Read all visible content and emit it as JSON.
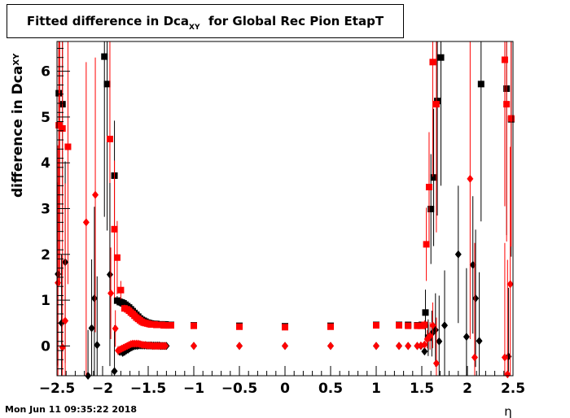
{
  "title": {
    "main": "Fitted difference in Dca",
    "sub": "XY",
    "rest": "  for Global Rec Pion EtapT"
  },
  "timestamp": "Mon Jun 11 09:35:22 2018",
  "colors": {
    "black_series": "#000000",
    "red_series": "#ff0000",
    "frame": "#000000"
  },
  "chart_data": {
    "type": "scatter",
    "title": "Fitted difference in Dca_XY for Global Rec Pion EtapT",
    "xlabel": "η",
    "ylabel": "difference in Dca",
    "ylabel_sub": "XY",
    "xlim": [
      -2.5,
      2.5
    ],
    "ylim": [
      -0.65,
      6.65
    ],
    "xticks": [
      -2.5,
      -2,
      -1.5,
      -1,
      -0.5,
      0,
      0.5,
      1,
      1.5,
      2,
      2.5
    ],
    "xtick_labels": [
      "−2.5",
      "−2",
      "−1.5",
      "−1",
      "−0.5",
      "0",
      "0.5",
      "1",
      "1.5",
      "2",
      "2.5"
    ],
    "yticks": [
      0,
      1,
      2,
      3,
      4,
      5,
      6
    ],
    "ytick_labels": [
      "0",
      "1",
      "2",
      "3",
      "4",
      "5",
      "6"
    ],
    "grid": false,
    "series": [
      {
        "marker": "square",
        "color": "#000000",
        "x": [
          -2.48,
          -2.44,
          -1.98,
          -1.95,
          -1.87,
          -1.84,
          -1.81,
          -1.79,
          -1.77,
          -1.75,
          -1.73,
          -1.71,
          -1.69,
          -1.67,
          -1.65,
          -1.63,
          -1.61,
          -1.59,
          -1.57,
          -1.55,
          -1.53,
          -1.51,
          -1.49,
          -1.47,
          -1.45,
          -1.43,
          -1.41,
          -1.39,
          -1.37,
          -1.35,
          -1.33,
          -1.31,
          -1.29,
          -1.27,
          -1.25,
          -1.0,
          -0.5,
          0.0,
          0.5,
          1.0,
          1.25,
          1.35,
          1.45,
          1.5,
          1.54,
          1.57,
          1.6,
          1.63,
          1.67,
          1.71,
          2.15,
          2.43,
          2.48
        ],
        "y": [
          5.52,
          5.28,
          6.32,
          5.72,
          3.72,
          0.99,
          0.96,
          0.95,
          0.93,
          0.9,
          0.87,
          0.84,
          0.8,
          0.76,
          0.72,
          0.68,
          0.64,
          0.6,
          0.57,
          0.55,
          0.53,
          0.51,
          0.5,
          0.49,
          0.48,
          0.48,
          0.48,
          0.47,
          0.47,
          0.47,
          0.47,
          0.47,
          0.46,
          0.46,
          0.46,
          0.45,
          0.44,
          0.43,
          0.44,
          0.46,
          0.46,
          0.46,
          0.45,
          0.46,
          0.73,
          0.18,
          2.99,
          3.68,
          5.35,
          6.3,
          5.72,
          5.62,
          4.95
        ],
        "err": [
          3.0,
          2.8,
          3.5,
          3.2,
          1.2,
          0.1,
          0.1,
          0.09,
          0.09,
          0.08,
          0.07,
          0.07,
          0.06,
          0.06,
          0.05,
          0.05,
          0.05,
          0.04,
          0.04,
          0.04,
          0.04,
          0.03,
          0.03,
          0.03,
          0.03,
          0.03,
          0.03,
          0.03,
          0.03,
          0.03,
          0.03,
          0.03,
          0.03,
          0.03,
          0.03,
          0.02,
          0.02,
          0.02,
          0.02,
          0.02,
          0.03,
          0.03,
          0.03,
          0.05,
          0.5,
          0.4,
          1.2,
          1.5,
          2.5,
          2.8,
          3.0,
          3.2,
          3.0
        ]
      },
      {
        "marker": "square",
        "color": "#ff0000",
        "x": [
          -2.48,
          -2.44,
          -2.38,
          -1.92,
          -1.87,
          -1.84,
          -1.8,
          -1.76,
          -1.73,
          -1.71,
          -1.69,
          -1.67,
          -1.65,
          -1.63,
          -1.61,
          -1.59,
          -1.57,
          -1.55,
          -1.53,
          -1.51,
          -1.49,
          -1.47,
          -1.45,
          -1.43,
          -1.41,
          -1.39,
          -1.37,
          -1.35,
          -1.33,
          -1.31,
          -1.29,
          -1.27,
          -1.25,
          -1.0,
          -0.5,
          0.0,
          0.5,
          1.0,
          1.25,
          1.35,
          1.45,
          1.49,
          1.53,
          1.55,
          1.58,
          1.62,
          1.66,
          2.41,
          2.43,
          2.48
        ],
        "y": [
          4.82,
          4.75,
          4.35,
          4.52,
          2.55,
          1.93,
          1.22,
          0.82,
          0.8,
          0.77,
          0.73,
          0.7,
          0.66,
          0.62,
          0.59,
          0.56,
          0.53,
          0.51,
          0.5,
          0.49,
          0.48,
          0.47,
          0.47,
          0.47,
          0.46,
          0.46,
          0.46,
          0.46,
          0.45,
          0.45,
          0.45,
          0.45,
          0.45,
          0.44,
          0.42,
          0.41,
          0.42,
          0.45,
          0.45,
          0.44,
          0.44,
          0.44,
          0.46,
          2.22,
          3.47,
          6.2,
          5.28,
          6.25,
          5.28,
          4.97
        ],
        "err": [
          3.5,
          3.2,
          3.0,
          3.3,
          1.5,
          0.8,
          0.2,
          0.08,
          0.08,
          0.07,
          0.07,
          0.06,
          0.06,
          0.05,
          0.05,
          0.05,
          0.04,
          0.04,
          0.04,
          0.04,
          0.03,
          0.03,
          0.03,
          0.03,
          0.03,
          0.03,
          0.03,
          0.03,
          0.03,
          0.03,
          0.03,
          0.03,
          0.03,
          0.02,
          0.02,
          0.02,
          0.02,
          0.02,
          0.03,
          0.03,
          0.03,
          0.04,
          0.1,
          0.8,
          1.2,
          2.5,
          2.8,
          3.2,
          3.0,
          2.8
        ]
      },
      {
        "marker": "diamond",
        "color": "#000000",
        "x": [
          -2.49,
          -2.45,
          -2.41,
          -2.16,
          -2.12,
          -2.09,
          -2.06,
          -1.92,
          -1.87,
          -1.81,
          -1.78,
          -1.76,
          -1.74,
          -1.72,
          -1.7,
          -1.68,
          -1.66,
          -1.64,
          -1.62,
          -1.6,
          -1.58,
          -1.56,
          -1.54,
          -1.52,
          -1.5,
          -1.48,
          -1.46,
          -1.44,
          -1.42,
          -1.4,
          -1.38,
          -1.36,
          -1.34,
          -1.32,
          -1.3,
          -1.0,
          -0.5,
          0.0,
          0.5,
          1.0,
          1.25,
          1.35,
          1.45,
          1.49,
          1.53,
          1.57,
          1.61,
          1.65,
          1.69,
          1.75,
          1.9,
          1.99,
          2.06,
          2.09,
          2.13,
          2.45
        ],
        "y": [
          1.57,
          0.5,
          1.83,
          -0.65,
          0.39,
          1.04,
          0.02,
          1.56,
          -0.55,
          -0.13,
          -0.15,
          -0.13,
          -0.1,
          -0.08,
          -0.05,
          -0.03,
          -0.01,
          0.0,
          0.0,
          0.01,
          0.01,
          0.01,
          0.01,
          0.01,
          0.01,
          0.01,
          0.01,
          0.01,
          0.01,
          0.01,
          0.01,
          0.0,
          0.0,
          0.0,
          0.0,
          0.0,
          0.0,
          0.0,
          0.0,
          0.0,
          0.0,
          0.0,
          0.0,
          0.0,
          -0.12,
          0.17,
          0.27,
          0.35,
          0.1,
          0.45,
          2.0,
          0.2,
          1.77,
          1.04,
          0.11,
          -0.23
        ],
        "err": [
          2.0,
          1.5,
          2.2,
          1.0,
          1.5,
          2.0,
          1.5,
          2.0,
          1.0,
          0.08,
          0.07,
          0.06,
          0.06,
          0.05,
          0.05,
          0.04,
          0.04,
          0.04,
          0.03,
          0.03,
          0.03,
          0.03,
          0.03,
          0.03,
          0.02,
          0.02,
          0.02,
          0.02,
          0.02,
          0.02,
          0.02,
          0.02,
          0.02,
          0.02,
          0.02,
          0.02,
          0.02,
          0.02,
          0.02,
          0.02,
          0.02,
          0.02,
          0.02,
          0.03,
          0.06,
          0.3,
          0.5,
          0.8,
          1.0,
          1.2,
          1.5,
          1.5,
          1.5,
          1.5,
          1.5,
          1.5
        ]
      },
      {
        "marker": "diamond",
        "color": "#ff0000",
        "x": [
          -2.49,
          -2.47,
          -2.44,
          -2.41,
          -2.18,
          -2.08,
          -1.91,
          -1.86,
          -1.83,
          -1.81,
          -1.79,
          -1.77,
          -1.75,
          -1.73,
          -1.71,
          -1.69,
          -1.67,
          -1.65,
          -1.63,
          -1.61,
          -1.59,
          -1.57,
          -1.55,
          -1.53,
          -1.51,
          -1.49,
          -1.47,
          -1.45,
          -1.43,
          -1.41,
          -1.39,
          -1.37,
          -1.35,
          -1.33,
          -1.31,
          -1.0,
          -0.5,
          0.0,
          0.5,
          1.0,
          1.25,
          1.35,
          1.45,
          1.49,
          1.53,
          1.56,
          1.59,
          1.62,
          1.66,
          2.03,
          2.08,
          2.41,
          2.44,
          2.47
        ],
        "y": [
          1.38,
          4.82,
          -0.03,
          0.55,
          2.7,
          3.3,
          1.15,
          0.38,
          -0.1,
          -0.08,
          -0.06,
          -0.04,
          -0.02,
          0.0,
          0.02,
          0.04,
          0.05,
          0.05,
          0.05,
          0.05,
          0.04,
          0.03,
          0.02,
          0.02,
          0.01,
          0.01,
          0.01,
          0.0,
          0.0,
          0.0,
          0.0,
          0.0,
          0.0,
          0.0,
          0.0,
          0.0,
          0.0,
          0.0,
          0.0,
          0.0,
          0.0,
          0.0,
          0.0,
          0.01,
          0.03,
          0.15,
          0.22,
          0.45,
          -0.38,
          3.65,
          -0.25,
          -0.25,
          -0.62,
          1.35
        ],
        "err": [
          3.0,
          3.5,
          2.0,
          3.0,
          3.5,
          3.0,
          1.0,
          0.4,
          0.1,
          0.08,
          0.07,
          0.06,
          0.05,
          0.05,
          0.04,
          0.04,
          0.04,
          0.03,
          0.03,
          0.03,
          0.03,
          0.03,
          0.03,
          0.02,
          0.02,
          0.02,
          0.02,
          0.02,
          0.02,
          0.02,
          0.02,
          0.02,
          0.02,
          0.02,
          0.02,
          0.02,
          0.02,
          0.02,
          0.02,
          0.02,
          0.02,
          0.02,
          0.02,
          0.03,
          0.05,
          0.2,
          0.3,
          0.5,
          1.0,
          3.5,
          2.5,
          2.5,
          2.5,
          3.0
        ]
      }
    ]
  }
}
